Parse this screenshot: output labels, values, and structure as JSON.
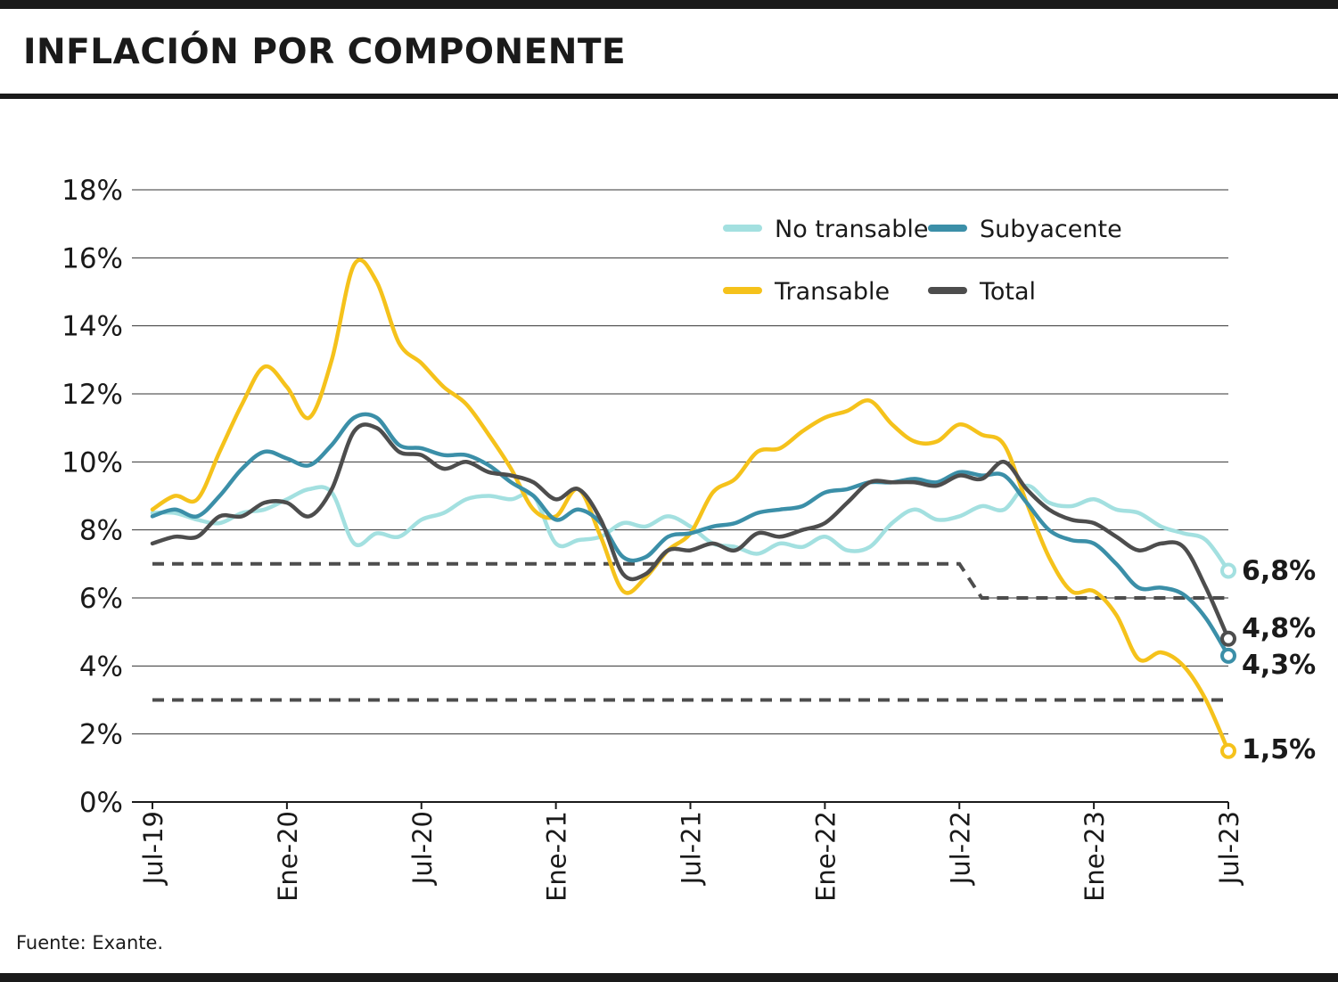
{
  "title": "INFLACIÓN POR COMPONENTE",
  "source": "Fuente: Exante.",
  "chart_data": {
    "type": "line",
    "ylim": [
      0,
      18
    ],
    "y_ticks": [
      0,
      2,
      4,
      6,
      8,
      10,
      12,
      14,
      16,
      18
    ],
    "y_tick_labels": [
      "0%",
      "2%",
      "4%",
      "6%",
      "8%",
      "10%",
      "12%",
      "14%",
      "16%",
      "18%"
    ],
    "x_tick_labels": [
      "Jul-19",
      "Ene-20",
      "Jul-20",
      "Ene-21",
      "Jul-21",
      "Ene-22",
      "Jul-22",
      "Ene-23",
      "Jul-23"
    ],
    "x_tick_month_index": [
      0,
      6,
      12,
      18,
      24,
      30,
      36,
      42,
      48
    ],
    "grid": true,
    "legend_position": "top-right",
    "series": [
      {
        "name": "No transable",
        "color": "#a3e0e0",
        "values": [
          8.5,
          8.5,
          8.3,
          8.2,
          8.5,
          8.6,
          8.9,
          9.2,
          9.1,
          7.6,
          7.9,
          7.8,
          8.3,
          8.5,
          8.9,
          9.0,
          8.9,
          9.0,
          7.6,
          7.7,
          7.8,
          8.2,
          8.1,
          8.4,
          8.1,
          7.6,
          7.5,
          7.3,
          7.6,
          7.5,
          7.8,
          7.4,
          7.5,
          8.2,
          8.6,
          8.3,
          8.4,
          8.7,
          8.6,
          9.3,
          8.8,
          8.7,
          8.9,
          8.6,
          8.5,
          8.1,
          7.9,
          7.7,
          6.8
        ]
      },
      {
        "name": "Subyacente",
        "color": "#3b8fa8",
        "values": [
          8.4,
          8.6,
          8.4,
          9.0,
          9.8,
          10.3,
          10.1,
          9.9,
          10.5,
          11.3,
          11.3,
          10.5,
          10.4,
          10.2,
          10.2,
          9.9,
          9.4,
          9.0,
          8.3,
          8.6,
          8.2,
          7.2,
          7.2,
          7.8,
          7.9,
          8.1,
          8.2,
          8.5,
          8.6,
          8.7,
          9.1,
          9.2,
          9.4,
          9.4,
          9.5,
          9.4,
          9.7,
          9.6,
          9.6,
          8.8,
          8.0,
          7.7,
          7.6,
          7.0,
          6.3,
          6.3,
          6.1,
          5.4,
          4.3
        ]
      },
      {
        "name": "Transable",
        "color": "#f5c21b",
        "values": [
          8.6,
          9.0,
          8.9,
          10.3,
          11.7,
          12.8,
          12.2,
          11.3,
          13.0,
          15.8,
          15.3,
          13.5,
          12.9,
          12.2,
          11.7,
          10.8,
          9.8,
          8.6,
          8.4,
          9.2,
          7.8,
          6.2,
          6.6,
          7.4,
          7.9,
          9.1,
          9.5,
          10.3,
          10.4,
          10.9,
          11.3,
          11.5,
          11.8,
          11.1,
          10.6,
          10.6,
          11.1,
          10.8,
          10.5,
          8.8,
          7.2,
          6.2,
          6.2,
          5.5,
          4.2,
          4.4,
          4.0,
          3.0,
          1.5
        ]
      },
      {
        "name": "Total",
        "color": "#4d4d4d",
        "values": [
          7.6,
          7.8,
          7.8,
          8.4,
          8.4,
          8.8,
          8.8,
          8.4,
          9.2,
          10.9,
          11.0,
          10.3,
          10.2,
          9.8,
          10.0,
          9.7,
          9.6,
          9.4,
          8.9,
          9.2,
          8.3,
          6.7,
          6.7,
          7.4,
          7.4,
          7.6,
          7.4,
          7.9,
          7.8,
          8.0,
          8.2,
          8.8,
          9.4,
          9.4,
          9.4,
          9.3,
          9.6,
          9.5,
          10.0,
          9.2,
          8.6,
          8.3,
          8.2,
          7.8,
          7.4,
          7.6,
          7.5,
          6.3,
          4.8
        ]
      }
    ],
    "end_labels": [
      {
        "series": "No transable",
        "label": "6,8%"
      },
      {
        "series": "Total",
        "label": "4,8%"
      },
      {
        "series": "Subyacente",
        "label": "4,3%"
      },
      {
        "series": "Transable",
        "label": "1,5%"
      }
    ],
    "target_lines": [
      {
        "points": [
          [
            0,
            7.0
          ],
          [
            36,
            7.0
          ],
          [
            37,
            6.0
          ],
          [
            48,
            6.0
          ]
        ],
        "style": "dashed",
        "color": "#4d4d4d"
      },
      {
        "points": [
          [
            0,
            3.0
          ],
          [
            48,
            3.0
          ]
        ],
        "style": "dashed",
        "color": "#4d4d4d"
      }
    ],
    "legend_rows": [
      [
        "No transable",
        "Subyacente"
      ],
      [
        "Transable",
        "Total"
      ]
    ]
  }
}
